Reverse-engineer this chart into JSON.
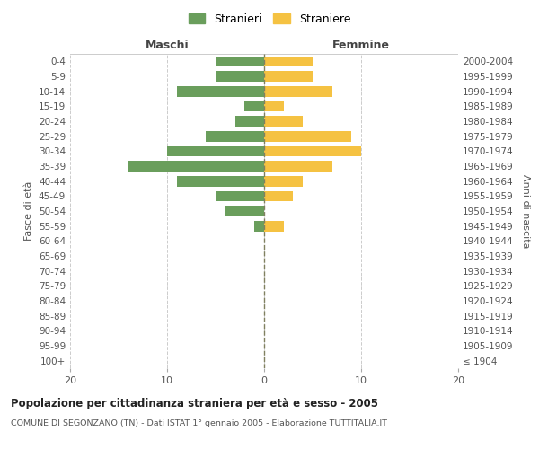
{
  "age_groups": [
    "100+",
    "95-99",
    "90-94",
    "85-89",
    "80-84",
    "75-79",
    "70-74",
    "65-69",
    "60-64",
    "55-59",
    "50-54",
    "45-49",
    "40-44",
    "35-39",
    "30-34",
    "25-29",
    "20-24",
    "15-19",
    "10-14",
    "5-9",
    "0-4"
  ],
  "birth_years": [
    "≤ 1904",
    "1905-1909",
    "1910-1914",
    "1915-1919",
    "1920-1924",
    "1925-1929",
    "1930-1934",
    "1935-1939",
    "1940-1944",
    "1945-1949",
    "1950-1954",
    "1955-1959",
    "1960-1964",
    "1965-1969",
    "1970-1974",
    "1975-1979",
    "1980-1984",
    "1985-1989",
    "1990-1994",
    "1995-1999",
    "2000-2004"
  ],
  "males": [
    0,
    0,
    0,
    0,
    0,
    0,
    0,
    0,
    0,
    1,
    4,
    5,
    9,
    14,
    10,
    6,
    3,
    2,
    9,
    5,
    5
  ],
  "females": [
    0,
    0,
    0,
    0,
    0,
    0,
    0,
    0,
    0,
    2,
    0,
    3,
    4,
    7,
    10,
    9,
    4,
    2,
    7,
    5,
    5
  ],
  "male_color": "#6a9e5c",
  "female_color": "#f5c242",
  "bg_color": "#ffffff",
  "grid_color": "#cccccc",
  "center_line_color": "#808060",
  "xlim": 20,
  "title": "Popolazione per cittadinanza straniera per età e sesso - 2005",
  "subtitle": "COMUNE DI SEGONZANO (TN) - Dati ISTAT 1° gennaio 2005 - Elaborazione TUTTITALIA.IT",
  "left_label": "Maschi",
  "right_label": "Femmine",
  "y_left_label": "Fasce di età",
  "y_right_label": "Anni di nascita",
  "legend_male": "Stranieri",
  "legend_female": "Straniere"
}
